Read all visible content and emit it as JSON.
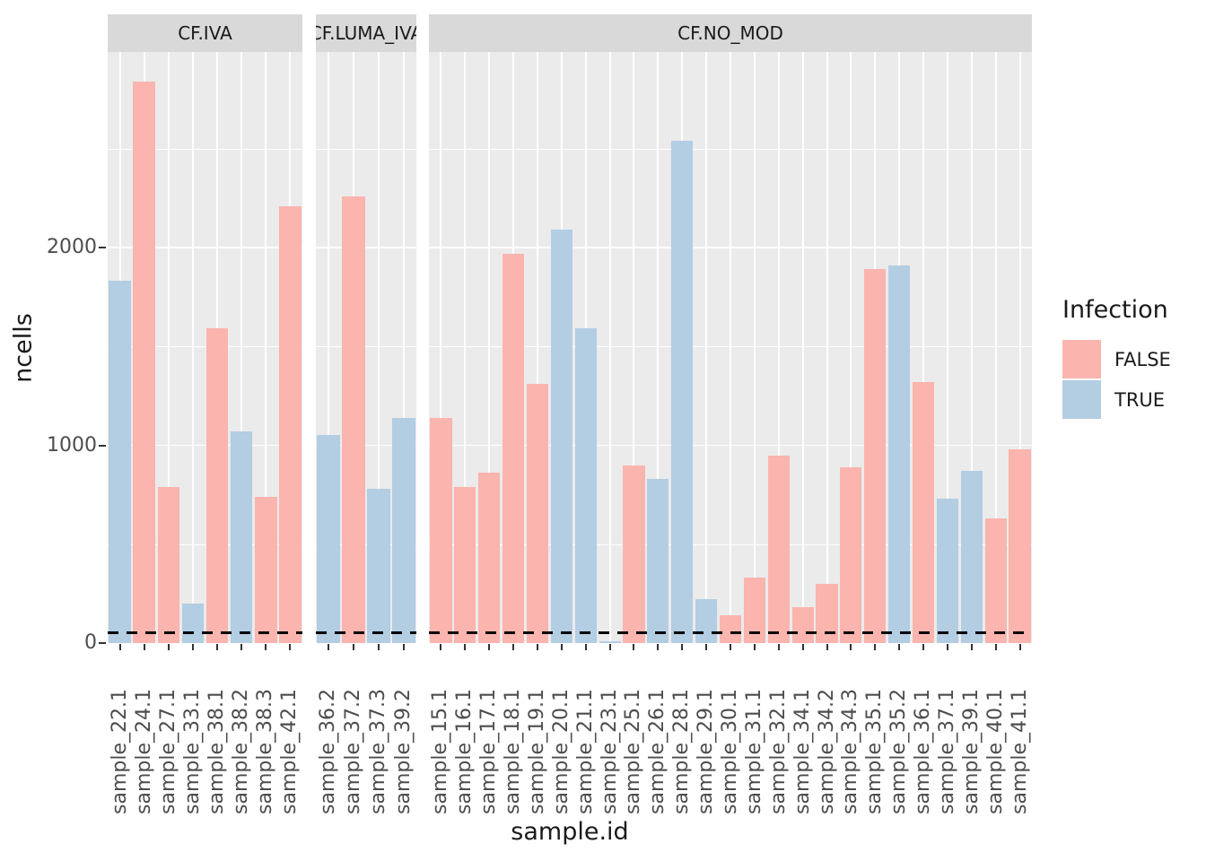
{
  "chart_data": {
    "type": "bar",
    "title": "",
    "xlabel": "sample.id",
    "ylabel": "ncells",
    "ylim": [
      0,
      3000
    ],
    "y_ticks": [
      0,
      1000,
      2000
    ],
    "y_minor_gridlines": [
      500,
      1500,
      2500
    ],
    "grid": true,
    "legend_title": "Infection",
    "legend_position": "right",
    "legend": [
      {
        "label": "FALSE",
        "color": "#FBB4AE"
      },
      {
        "label": "TRUE",
        "color": "#B3CDE3"
      }
    ],
    "hline": {
      "y": 50,
      "linetype": "dashed",
      "color": "#000000"
    },
    "panel_bg": "#EBEBEB",
    "strip_bg": "#D9D9D9",
    "facets": [
      {
        "label": "CF.IVA",
        "samples": [
          {
            "id": "sample_22.1",
            "infection": "TRUE",
            "ncells": 1830
          },
          {
            "id": "sample_24.1",
            "infection": "FALSE",
            "ncells": 2840
          },
          {
            "id": "sample_27.1",
            "infection": "FALSE",
            "ncells": 790
          },
          {
            "id": "sample_33.1",
            "infection": "TRUE",
            "ncells": 200
          },
          {
            "id": "sample_38.1",
            "infection": "FALSE",
            "ncells": 1590
          },
          {
            "id": "sample_38.2",
            "infection": "TRUE",
            "ncells": 1070
          },
          {
            "id": "sample_38.3",
            "infection": "FALSE",
            "ncells": 740
          },
          {
            "id": "sample_42.1",
            "infection": "FALSE",
            "ncells": 2210
          }
        ]
      },
      {
        "label": "CF.LUMA_IVA",
        "samples": [
          {
            "id": "sample_36.2",
            "infection": "TRUE",
            "ncells": 1050
          },
          {
            "id": "sample_37.2",
            "infection": "FALSE",
            "ncells": 2260
          },
          {
            "id": "sample_37.3",
            "infection": "TRUE",
            "ncells": 780
          },
          {
            "id": "sample_39.2",
            "infection": "TRUE",
            "ncells": 1140
          }
        ]
      },
      {
        "label": "CF.NO_MOD",
        "samples": [
          {
            "id": "sample_15.1",
            "infection": "FALSE",
            "ncells": 1140
          },
          {
            "id": "sample_16.1",
            "infection": "FALSE",
            "ncells": 790
          },
          {
            "id": "sample_17.1",
            "infection": "FALSE",
            "ncells": 860
          },
          {
            "id": "sample_18.1",
            "infection": "FALSE",
            "ncells": 1970
          },
          {
            "id": "sample_19.1",
            "infection": "FALSE",
            "ncells": 1310
          },
          {
            "id": "sample_20.1",
            "infection": "TRUE",
            "ncells": 2090
          },
          {
            "id": "sample_21.1",
            "infection": "TRUE",
            "ncells": 1590
          },
          {
            "id": "sample_23.1",
            "infection": "TRUE",
            "ncells": 10
          },
          {
            "id": "sample_25.1",
            "infection": "FALSE",
            "ncells": 900
          },
          {
            "id": "sample_26.1",
            "infection": "TRUE",
            "ncells": 830
          },
          {
            "id": "sample_28.1",
            "infection": "TRUE",
            "ncells": 2540
          },
          {
            "id": "sample_29.1",
            "infection": "TRUE",
            "ncells": 220
          },
          {
            "id": "sample_30.1",
            "infection": "FALSE",
            "ncells": 140
          },
          {
            "id": "sample_31.1",
            "infection": "FALSE",
            "ncells": 330
          },
          {
            "id": "sample_32.1",
            "infection": "FALSE",
            "ncells": 950
          },
          {
            "id": "sample_34.1",
            "infection": "FALSE",
            "ncells": 180
          },
          {
            "id": "sample_34.2",
            "infection": "FALSE",
            "ncells": 300
          },
          {
            "id": "sample_34.3",
            "infection": "FALSE",
            "ncells": 890
          },
          {
            "id": "sample_35.1",
            "infection": "FALSE",
            "ncells": 1890
          },
          {
            "id": "sample_35.2",
            "infection": "TRUE",
            "ncells": 1910
          },
          {
            "id": "sample_36.1",
            "infection": "FALSE",
            "ncells": 1320
          },
          {
            "id": "sample_37.1",
            "infection": "TRUE",
            "ncells": 730
          },
          {
            "id": "sample_39.1",
            "infection": "TRUE",
            "ncells": 870
          },
          {
            "id": "sample_40.1",
            "infection": "FALSE",
            "ncells": 630
          },
          {
            "id": "sample_41.1",
            "infection": "FALSE",
            "ncells": 980
          }
        ]
      }
    ]
  }
}
